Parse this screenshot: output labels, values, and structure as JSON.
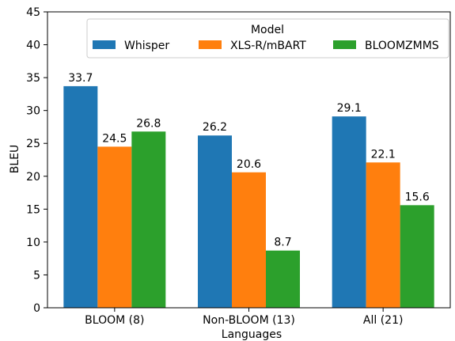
{
  "chart_data": {
    "type": "bar",
    "categories": [
      "BLOOM (8)",
      "Non-BLOOM (13)",
      "All (21)"
    ],
    "series": [
      {
        "name": "Whisper",
        "color": "#1f77b4",
        "values": [
          33.7,
          26.2,
          29.1
        ]
      },
      {
        "name": "XLS-R/mBART",
        "color": "#ff7f0e",
        "values": [
          24.5,
          20.6,
          22.1
        ]
      },
      {
        "name": "BLOOMZMMS",
        "color": "#2ca02c",
        "values": [
          26.8,
          8.7,
          15.6
        ]
      }
    ],
    "data_labels": [
      [
        "33.7",
        "24.5",
        "26.8"
      ],
      [
        "26.2",
        "20.6",
        "8.7"
      ],
      [
        "29.1",
        "22.1",
        "15.6"
      ]
    ],
    "xlabel": "Languages",
    "ylabel": "BLEU",
    "ylim": [
      0,
      45
    ],
    "yticks": [
      0,
      5,
      10,
      15,
      20,
      25,
      30,
      35,
      40,
      45
    ],
    "ytick_labels": [
      "0",
      "5",
      "10",
      "15",
      "20",
      "25",
      "30",
      "35",
      "40",
      "45"
    ],
    "legend": {
      "title": "Model",
      "placement": "top-right",
      "columns": 3
    },
    "grid": false
  }
}
